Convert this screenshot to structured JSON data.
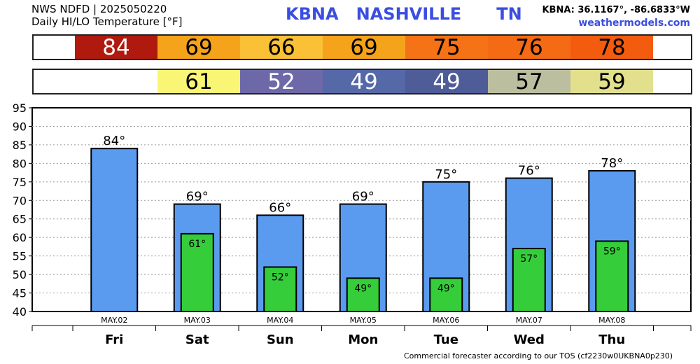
{
  "header": {
    "line1": "NWS NDFD | 2025050220",
    "line2": "Daily HI/LO Temperature [°F]",
    "station": "KBNA   NASHVILLE      TN",
    "coords": "KBNA: 36.1167°, -86.6833°W",
    "site": "weathermodels.com"
  },
  "hi_strip": [
    {
      "value": "84",
      "color": "#b0190e",
      "text_color": "#ffffff"
    },
    {
      "value": "69",
      "color": "#f5a31b",
      "text_color": "#000000"
    },
    {
      "value": "66",
      "color": "#fac036",
      "text_color": "#000000"
    },
    {
      "value": "69",
      "color": "#f5a31b",
      "text_color": "#000000"
    },
    {
      "value": "75",
      "color": "#f57316",
      "text_color": "#000000"
    },
    {
      "value": "76",
      "color": "#f56a14",
      "text_color": "#000000"
    },
    {
      "value": "78",
      "color": "#f35c0f",
      "text_color": "#000000"
    }
  ],
  "lo_strip": [
    {
      "value": "61",
      "color": "#f9f675",
      "text_color": "#000000"
    },
    {
      "value": "52",
      "color": "#6d69a9",
      "text_color": "#ffffff"
    },
    {
      "value": "49",
      "color": "#5568a8",
      "text_color": "#ffffff"
    },
    {
      "value": "49",
      "color": "#4e5c98",
      "text_color": "#ffffff"
    },
    {
      "value": "57",
      "color": "#bcbea0",
      "text_color": "#000000"
    },
    {
      "value": "59",
      "color": "#e2e08c",
      "text_color": "#000000"
    }
  ],
  "chart_data": {
    "type": "bar",
    "categories": [
      "Fri",
      "Sat",
      "Sun",
      "Mon",
      "Tue",
      "Wed",
      "Thu"
    ],
    "dates": [
      "MAY.02",
      "MAY.03",
      "MAY.04",
      "MAY.05",
      "MAY.06",
      "MAY.07",
      "MAY.08"
    ],
    "series": [
      {
        "name": "HI",
        "values": [
          84,
          69,
          66,
          69,
          75,
          76,
          78
        ],
        "color": "#5a9bf0",
        "labels": [
          "84°",
          "69°",
          "66°",
          "69°",
          "75°",
          "76°",
          "78°"
        ]
      },
      {
        "name": "LO",
        "values": [
          null,
          61,
          52,
          49,
          49,
          57,
          59
        ],
        "color": "#35cd3a",
        "labels": [
          "",
          "61°",
          "52°",
          "49°",
          "49°",
          "57°",
          "59°"
        ]
      }
    ],
    "ylim": [
      40,
      95
    ],
    "yticks": [
      "40",
      "45",
      "50",
      "55",
      "60",
      "65",
      "70",
      "75",
      "80",
      "85",
      "90",
      "95"
    ],
    "grid": true
  },
  "footer": "Commercial forecaster according to our TOS (cf2230w0UKBNA0p230)"
}
